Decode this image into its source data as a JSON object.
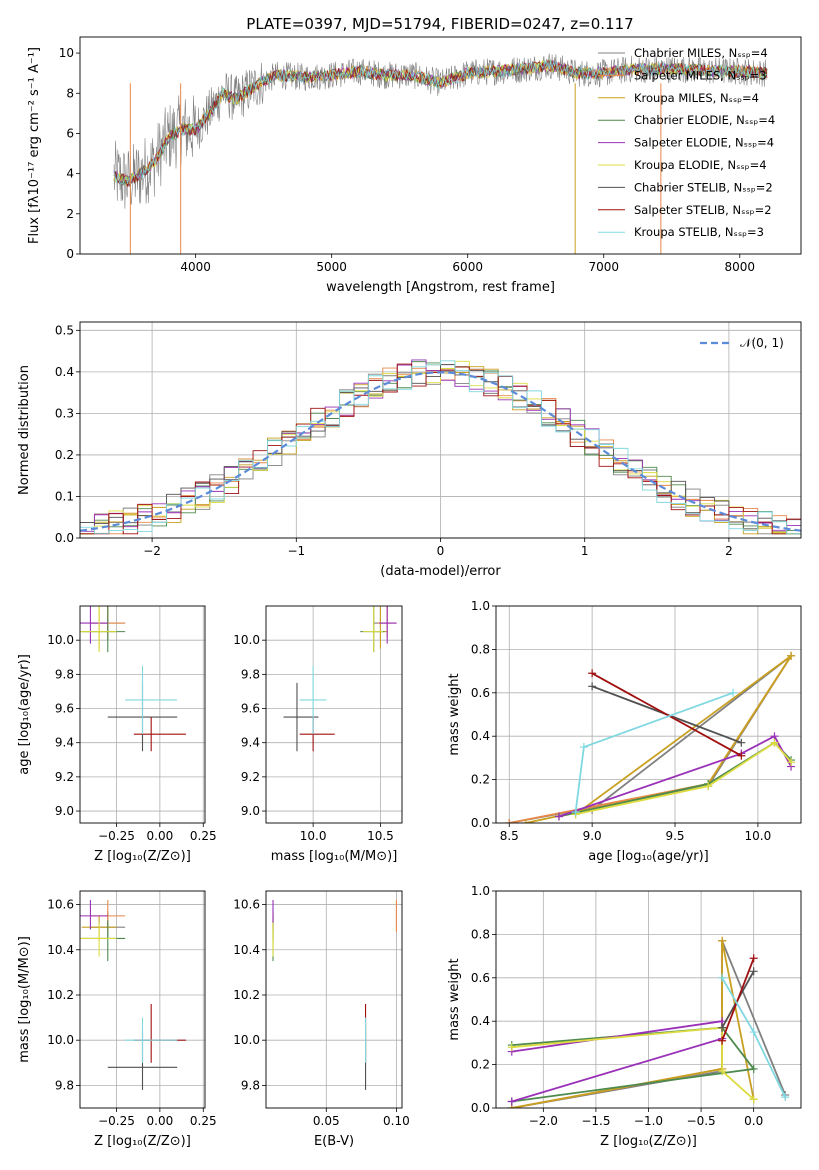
{
  "title": "PLATE=0397, MJD=51794, FIBERID=0247, z=0.117",
  "colors": {
    "chabrier_miles": "#808080",
    "salpeter_miles": "#e8884a",
    "kroupa_miles": "#c8a020",
    "chabrier_elodie": "#4e8a4e",
    "salpeter_elodie": "#9a30b8",
    "kroupa_elodie": "#dcdc40",
    "chabrier_stelib": "#505050",
    "salpeter_stelib": "#a01010",
    "kroupa_stelib": "#80d8e0",
    "normal": "#5b8bd9"
  },
  "chart_data": [
    {
      "type": "line",
      "id": "spectrum",
      "xlabel": "wavelength [Angstrom, rest frame]",
      "ylabel": "Flux [fλ10⁻¹⁷ erg cm⁻² s⁻¹ A⁻¹]",
      "xlim": [
        3150,
        8450
      ],
      "ylim": [
        0,
        10.8
      ],
      "xticks": [
        4000,
        5000,
        6000,
        7000,
        8000
      ],
      "yticks": [
        0,
        2,
        4,
        6,
        8,
        10
      ],
      "grid": false,
      "legend_position": "right",
      "x": [
        3400,
        3500,
        3600,
        3700,
        3800,
        3900,
        4000,
        4100,
        4200,
        4300,
        4400,
        4500,
        4600,
        4800,
        5000,
        5200,
        5400,
        5600,
        5800,
        6000,
        6200,
        6400,
        6600,
        6800,
        7000,
        7200,
        7400,
        7600,
        7800,
        8000,
        8200
      ],
      "series": [
        {
          "name": "Chabrier MILES, Nₛₛₚ=4",
          "color_key": "chabrier_miles"
        },
        {
          "name": "Salpeter MILES, Nₛₛₚ=3",
          "color_key": "salpeter_miles"
        },
        {
          "name": "Kroupa MILES, Nₛₛₚ=4",
          "color_key": "kroupa_miles"
        },
        {
          "name": "Chabrier ELODIE, Nₛₛₚ=4",
          "color_key": "chabrier_elodie"
        },
        {
          "name": "Salpeter ELODIE, Nₛₛₚ=4",
          "color_key": "salpeter_elodie"
        },
        {
          "name": "Kroupa ELODIE, Nₛₛₚ=4",
          "color_key": "kroupa_elodie"
        },
        {
          "name": "Chabrier STELIB, Nₛₛₚ=2",
          "color_key": "chabrier_stelib"
        },
        {
          "name": "Salpeter STELIB, Nₛₛₚ=2",
          "color_key": "salpeter_stelib"
        },
        {
          "name": "Kroupa STELIB, Nₛₛₚ=3",
          "color_key": "kroupa_stelib"
        }
      ],
      "model_flux": [
        3.9,
        3.6,
        4.0,
        4.6,
        5.8,
        6.2,
        6.2,
        7.0,
        8.0,
        7.7,
        8.2,
        8.6,
        8.9,
        8.8,
        8.9,
        9.1,
        8.9,
        8.9,
        8.5,
        9.0,
        9.1,
        9.2,
        9.4,
        9.0,
        9.0,
        9.2,
        9.2,
        9.2,
        9.1,
        9.1,
        9.0
      ]
    },
    {
      "type": "bar",
      "id": "residuals",
      "xlabel": "(data-model)/error",
      "ylabel": "Normed distribution",
      "xlim": [
        -2.5,
        2.5
      ],
      "ylim": [
        0,
        0.52
      ],
      "xticks": [
        -2,
        -1,
        0,
        1,
        2
      ],
      "yticks": [
        0.0,
        0.1,
        0.2,
        0.3,
        0.4,
        0.5
      ],
      "grid": true,
      "legend": "𝒩(0, 1)",
      "legend_position": "top-right",
      "bin_width": 0.1,
      "bin_start": -2.5
    },
    {
      "type": "scatter",
      "id": "age_vs_Z",
      "xlabel": "Z [log₁₀(Z/Z⊙)]",
      "ylabel": "age  [log₁₀(age/yr)]",
      "xlim": [
        -0.46,
        0.26
      ],
      "ylim": [
        8.93,
        10.2
      ],
      "xticks": [
        -0.25,
        0.0,
        0.25
      ],
      "yticks": [
        9.0,
        9.2,
        9.4,
        9.6,
        9.8,
        10.0
      ],
      "grid": true
    },
    {
      "type": "scatter",
      "id": "age_vs_mass",
      "xlabel": "mass [log₁₀(M/M⊙)]",
      "ylabel": "",
      "xlim": [
        9.65,
        10.66
      ],
      "ylim": [
        8.93,
        10.2
      ],
      "xticks": [
        10.0,
        10.5
      ],
      "yticks": [
        9.0,
        9.2,
        9.4,
        9.6,
        9.8,
        10.0
      ],
      "grid": true
    },
    {
      "type": "line",
      "id": "weight_vs_age",
      "xlabel": "age  [log₁₀(age/yr)]",
      "ylabel": "mass weight",
      "xlim": [
        8.42,
        10.26
      ],
      "ylim": [
        0,
        1.0
      ],
      "xticks": [
        8.5,
        9.0,
        9.5,
        10.0
      ],
      "yticks": [
        0.0,
        0.2,
        0.4,
        0.6,
        0.8,
        1.0
      ],
      "grid": true
    },
    {
      "type": "scatter",
      "id": "mass_vs_Z",
      "xlabel": "Z [log₁₀(Z/Z⊙)]",
      "ylabel": "mass [log₁₀(M/M⊙)]",
      "xlim": [
        -0.46,
        0.26
      ],
      "ylim": [
        9.7,
        10.66
      ],
      "xticks": [
        -0.25,
        0.0,
        0.25
      ],
      "yticks": [
        9.8,
        10.0,
        10.2,
        10.4,
        10.6
      ],
      "grid": true
    },
    {
      "type": "scatter",
      "id": "mass_vs_ebv",
      "xlabel": "E(B-V)",
      "ylabel": "",
      "xlim": [
        0.007,
        0.104
      ],
      "ylim": [
        9.7,
        10.66
      ],
      "xticks": [
        0.05,
        0.1
      ],
      "yticks": [
        9.8,
        10.0,
        10.2,
        10.4,
        10.6
      ],
      "grid": true
    },
    {
      "type": "line",
      "id": "weight_vs_Z",
      "xlabel": "Z [log₁₀(Z/Z⊙)]",
      "ylabel": "mass weight",
      "xlim": [
        -2.45,
        0.45
      ],
      "ylim": [
        0,
        1.0
      ],
      "xticks": [
        -2.0,
        -1.5,
        -1.0,
        -0.5,
        0.0
      ],
      "yticks": [
        0.0,
        0.2,
        0.4,
        0.6,
        0.8,
        1.0
      ],
      "grid": true
    }
  ],
  "fits": [
    {
      "color_key": "chabrier_miles",
      "age": [
        10.1,
        0.1,
        0.3
      ],
      "Z": [
        -0.3,
        0.1,
        0.1
      ],
      "mass": [
        10.5,
        0.05,
        0.07
      ],
      "ebv": 0.012,
      "pts": [
        [
          8.5,
          0,
          -2.3
        ],
        [
          9.7,
          0.17,
          -0.3
        ],
        [
          10.2,
          0.77,
          -0.3
        ],
        [
          9.0,
          0.06,
          0.3
        ]
      ]
    },
    {
      "color_key": "salpeter_miles",
      "age": [
        10.1,
        0.08,
        0.3
      ],
      "Z": [
        -0.3,
        0.1,
        0.1
      ],
      "mass": [
        10.55,
        0.07,
        0.07
      ],
      "ebv": 0.1,
      "pts": [
        [
          8.5,
          0,
          -2.3
        ],
        [
          9.7,
          0.18,
          -0.3
        ],
        [
          10.2,
          0.77,
          -0.3
        ]
      ]
    },
    {
      "color_key": "kroupa_miles",
      "age": [
        10.05,
        0.1,
        0.2
      ],
      "Z": [
        -0.35,
        0.1,
        0.1
      ],
      "mass": [
        10.5,
        0.06,
        0.05
      ],
      "ebv": 0.012,
      "pts": [
        [
          8.6,
          0,
          -2.3
        ],
        [
          9.7,
          0.18,
          -0.3
        ],
        [
          10.2,
          0.77,
          -0.3
        ],
        [
          8.9,
          0.04,
          0.0
        ]
      ]
    },
    {
      "color_key": "chabrier_elodie",
      "age": [
        10.05,
        0.12,
        0.2
      ],
      "Z": [
        -0.3,
        0.15,
        0.1
      ],
      "mass": [
        10.45,
        0.1,
        0.08
      ],
      "ebv": 0.012,
      "pts": [
        [
          8.8,
          0.03,
          -2.3
        ],
        [
          9.7,
          0.18,
          0.0
        ],
        [
          10.1,
          0.37,
          -0.3
        ],
        [
          10.2,
          0.29,
          -2.3
        ]
      ]
    },
    {
      "color_key": "salpeter_elodie",
      "age": [
        10.1,
        0.12,
        0.2
      ],
      "Z": [
        -0.4,
        0.1,
        0.1
      ],
      "mass": [
        10.55,
        0.06,
        0.07
      ],
      "ebv": 0.012,
      "pts": [
        [
          8.8,
          0.03,
          -2.3
        ],
        [
          9.9,
          0.32,
          -0.3
        ],
        [
          10.1,
          0.4,
          -0.3
        ],
        [
          10.2,
          0.26,
          -2.3
        ]
      ]
    },
    {
      "color_key": "kroupa_elodie",
      "age": [
        10.05,
        0.12,
        0.2
      ],
      "Z": [
        -0.35,
        0.12,
        0.1
      ],
      "mass": [
        10.45,
        0.08,
        0.07
      ],
      "ebv": 0.012,
      "pts": [
        [
          8.9,
          0.04,
          0.0
        ],
        [
          9.7,
          0.17,
          -0.3
        ],
        [
          10.1,
          0.37,
          -0.3
        ],
        [
          10.2,
          0.28,
          -2.3
        ]
      ]
    },
    {
      "color_key": "chabrier_stelib",
      "age": [
        9.55,
        0.2,
        0.2
      ],
      "Z": [
        -0.1,
        0.2,
        0.2
      ],
      "mass": [
        9.88,
        0.1,
        0.16
      ],
      "ebv": 0.078,
      "pts": [
        [
          9.0,
          0.63,
          0.0
        ],
        [
          9.9,
          0.37,
          -0.3
        ]
      ]
    },
    {
      "color_key": "salpeter_stelib",
      "age": [
        9.45,
        0.1,
        0.1
      ],
      "Z": [
        -0.05,
        0.1,
        0.2
      ],
      "mass": [
        10.0,
        0.1,
        0.16
      ],
      "ebv": 0.078,
      "pts": [
        [
          9.0,
          0.69,
          0.0
        ],
        [
          9.9,
          0.31,
          -0.3
        ]
      ]
    },
    {
      "color_key": "kroupa_stelib",
      "age": [
        9.65,
        0.2,
        0.2
      ],
      "Z": [
        -0.1,
        0.1,
        0.2
      ],
      "mass": [
        10.0,
        0.1,
        0.1
      ],
      "ebv": 0.078,
      "pts": [
        [
          8.9,
          0.05,
          0.3
        ],
        [
          8.95,
          0.35,
          0.0
        ],
        [
          9.85,
          0.6,
          -0.3
        ]
      ]
    }
  ]
}
